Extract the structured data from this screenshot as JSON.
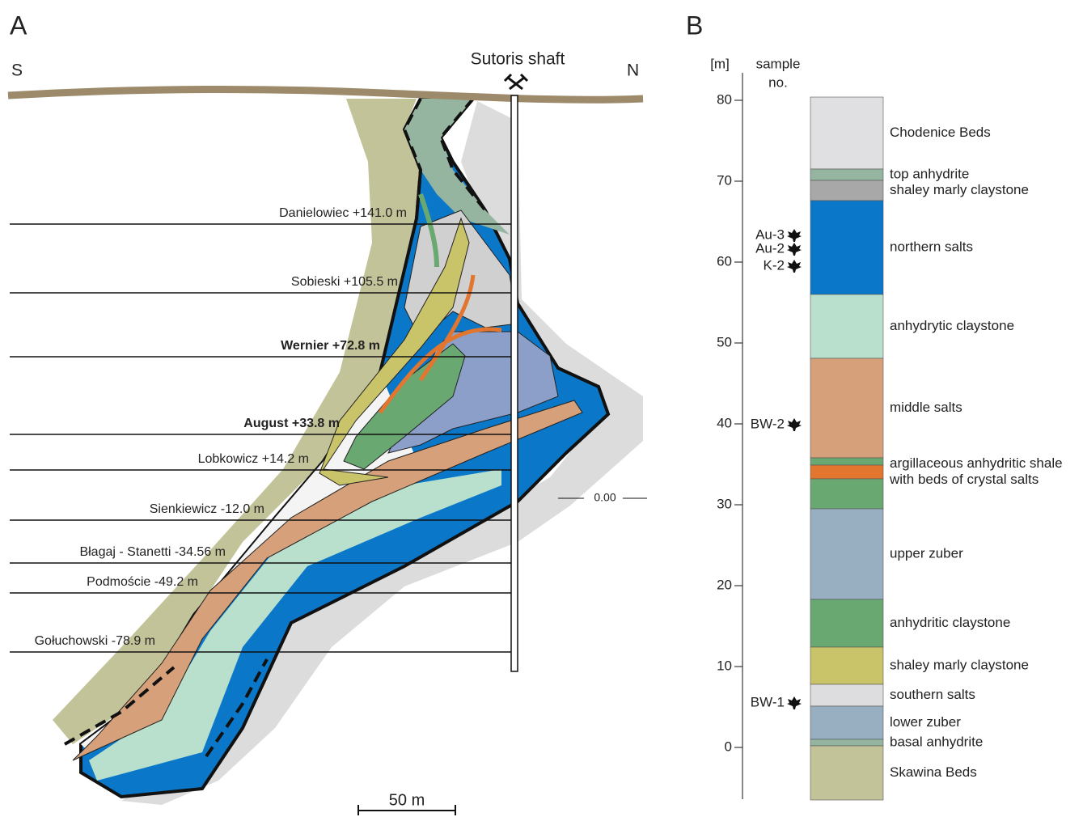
{
  "panel_a": {
    "label": "A",
    "south": "S",
    "north": "N",
    "shaft": "Sutoris shaft",
    "datum": "0.00",
    "scale": "50 m",
    "levels": [
      {
        "name": "Danielowiec +141.0 m",
        "bold": false
      },
      {
        "name": "Sobieski +105.5 m",
        "bold": false
      },
      {
        "name": "Wernier +72.8 m",
        "bold": true
      },
      {
        "name": "August +33.8 m",
        "bold": true
      },
      {
        "name": "Lobkowicz +14.2 m",
        "bold": false
      },
      {
        "name": "Sienkiewicz -12.0 m",
        "bold": false
      },
      {
        "name": "Błagaj - Stanetti -34.56 m",
        "bold": false
      },
      {
        "name": "Podmoście -49.2 m",
        "bold": false
      },
      {
        "name": "Gołuchowski -78.9 m",
        "bold": false
      }
    ]
  },
  "panel_b": {
    "label": "B",
    "axis_label": "[m]",
    "sample_header": [
      "sample",
      "no."
    ],
    "ylim": [
      -6.4,
      83.4
    ],
    "yticks": [
      0,
      10,
      20,
      30,
      40,
      50,
      60,
      70,
      80
    ],
    "layers": [
      {
        "name": [
          "Chodenice Beds"
        ],
        "top": 80.4,
        "bottom": 71.5,
        "color": "#e0e0e2"
      },
      {
        "name": [
          "top anhydrite"
        ],
        "top": 71.5,
        "bottom": 70.1,
        "color": "#95b5a0"
      },
      {
        "name": [
          "shaley marly claystone"
        ],
        "top": 70.1,
        "bottom": 67.6,
        "color": "#a8a8a8"
      },
      {
        "name": [
          "northern salts"
        ],
        "top": 67.6,
        "bottom": 56.0,
        "color": "#0a77c9"
      },
      {
        "name": [
          "anhydrytic claystone"
        ],
        "top": 56.0,
        "bottom": 48.1,
        "color": "#b9e0cc"
      },
      {
        "name": [
          "middle salts"
        ],
        "top": 48.1,
        "bottom": 35.8,
        "color": "#d6a07a"
      },
      {
        "name": null,
        "top": 35.8,
        "bottom": 34.9,
        "color": "#6aa872"
      },
      {
        "name": [
          "argillaceous anhydritic shale",
          "with beds of crystal salts"
        ],
        "top": 34.9,
        "bottom": 33.2,
        "color": "#e2762e"
      },
      {
        "name": null,
        "top": 33.2,
        "bottom": 29.5,
        "color": "#6aa872"
      },
      {
        "name": [
          "upper zuber"
        ],
        "top": 29.5,
        "bottom": 18.3,
        "color": "#97afc0"
      },
      {
        "name": [
          "anhydritic claystone"
        ],
        "top": 18.3,
        "bottom": 12.4,
        "color": "#6aa872"
      },
      {
        "name": [
          "shaley marly claystone"
        ],
        "top": 12.4,
        "bottom": 7.8,
        "color": "#c9c46a"
      },
      {
        "name": [
          "southern salts"
        ],
        "top": 7.8,
        "bottom": 5.1,
        "color": "#dddcdf"
      },
      {
        "name": [
          "lower zuber"
        ],
        "top": 5.1,
        "bottom": 1.0,
        "color": "#97afc0"
      },
      {
        "name": [
          "basal anhydrite"
        ],
        "top": 1.0,
        "bottom": 0.2,
        "color": "#95b5a0"
      },
      {
        "name": [
          "Skawina Beds"
        ],
        "top": 0.2,
        "bottom": -6.5,
        "color": "#c3c39a"
      }
    ],
    "samples": [
      {
        "name": "Au-3",
        "depth": 63.3
      },
      {
        "name": "Au-2",
        "depth": 61.6
      },
      {
        "name": "K-2",
        "depth": 59.5
      },
      {
        "name": "BW-2",
        "depth": 39.9
      },
      {
        "name": "BW-1",
        "depth": 5.5
      }
    ]
  }
}
